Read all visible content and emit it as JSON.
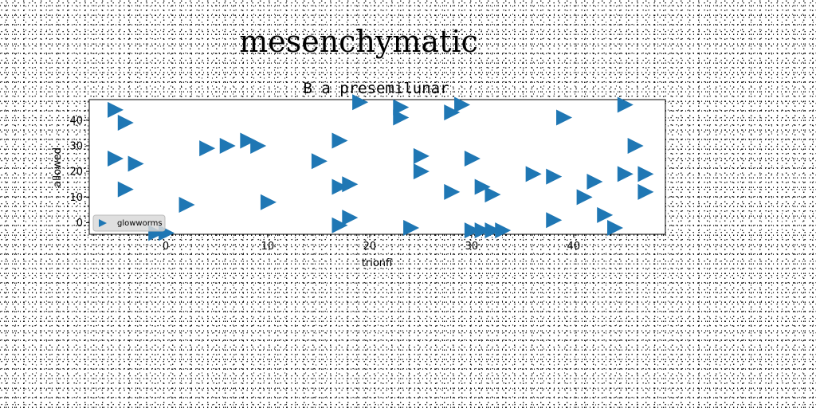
{
  "page": {
    "suptitle": "mesenchymatic"
  },
  "chart_data": {
    "type": "scatter",
    "title": "B a presemilunar",
    "xlabel": "trionfi",
    "ylabel": "allowed",
    "xlim": [
      -7.5,
      49
    ],
    "ylim": [
      -4.5,
      48
    ],
    "xticks": [
      0,
      10,
      20,
      30,
      40
    ],
    "yticks": [
      0,
      10,
      20,
      30,
      40
    ],
    "grid": false,
    "legend_position": "lower-left",
    "marker": "triangle-right",
    "color": "#1f77b4",
    "series": [
      {
        "name": "glowworms",
        "points": [
          [
            -5,
            44
          ],
          [
            -4,
            39
          ],
          [
            -5,
            25
          ],
          [
            -3,
            23
          ],
          [
            -4,
            13
          ],
          [
            -1,
            -4
          ],
          [
            0,
            -4
          ],
          [
            2,
            7
          ],
          [
            4,
            29
          ],
          [
            6,
            30
          ],
          [
            8,
            32
          ],
          [
            9,
            30
          ],
          [
            10,
            8
          ],
          [
            15,
            24
          ],
          [
            17,
            32
          ],
          [
            17,
            14
          ],
          [
            18,
            15
          ],
          [
            17,
            -1
          ],
          [
            18,
            2
          ],
          [
            19,
            47
          ],
          [
            23,
            45
          ],
          [
            23,
            41
          ],
          [
            24,
            -2
          ],
          [
            25,
            26
          ],
          [
            25,
            20
          ],
          [
            28,
            43
          ],
          [
            29,
            46
          ],
          [
            28,
            12
          ],
          [
            30,
            25
          ],
          [
            31,
            14
          ],
          [
            32,
            11
          ],
          [
            30,
            -3
          ],
          [
            31,
            -3
          ],
          [
            32,
            -3
          ],
          [
            33,
            -3
          ],
          [
            36,
            19
          ],
          [
            38,
            18
          ],
          [
            38,
            1
          ],
          [
            39,
            41
          ],
          [
            41,
            10
          ],
          [
            42,
            16
          ],
          [
            43,
            3
          ],
          [
            44,
            -2
          ],
          [
            45,
            46
          ],
          [
            45,
            19
          ],
          [
            46,
            30
          ],
          [
            47,
            19
          ],
          [
            47,
            12
          ]
        ]
      }
    ]
  }
}
